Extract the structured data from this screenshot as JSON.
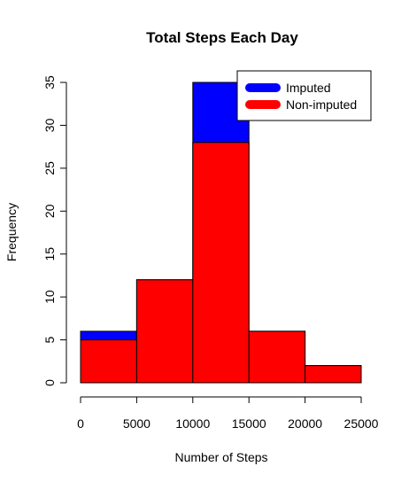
{
  "chart_data": {
    "type": "bar",
    "title": "Total Steps Each Day",
    "xlabel": "Number of Steps",
    "ylabel": "Frequency",
    "bins": [
      {
        "start": 0,
        "end": 5000
      },
      {
        "start": 5000,
        "end": 10000
      },
      {
        "start": 10000,
        "end": 15000
      },
      {
        "start": 15000,
        "end": 20000
      },
      {
        "start": 20000,
        "end": 25000
      }
    ],
    "series": [
      {
        "name": "Imputed",
        "color": "#0000ff",
        "values": [
          6,
          12,
          35,
          6,
          2
        ]
      },
      {
        "name": "Non-imputed",
        "color": "#ff0000",
        "values": [
          5,
          12,
          28,
          6,
          2
        ]
      }
    ],
    "xlim": [
      0,
      25000
    ],
    "ylim": [
      0,
      35
    ],
    "xticks": [
      0,
      5000,
      10000,
      15000,
      20000,
      25000
    ],
    "yticks": [
      0,
      5,
      10,
      15,
      20,
      25,
      30,
      35
    ],
    "legend_position": "top-right"
  }
}
